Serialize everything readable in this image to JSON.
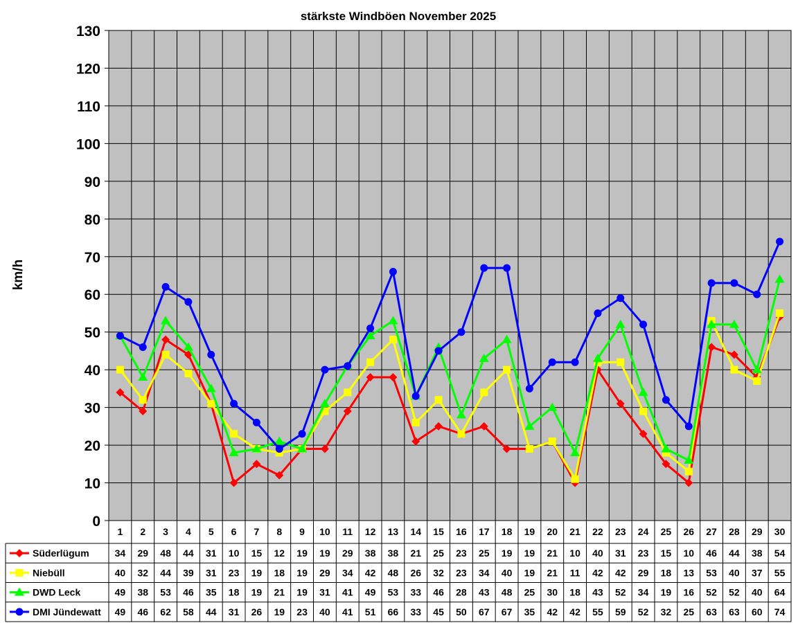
{
  "chart_data": {
    "type": "line",
    "title": "stärkste Windböen November 2025",
    "xlabel": "",
    "ylabel": "km/h",
    "ylim": [
      0,
      130
    ],
    "yticks": [
      0,
      10,
      20,
      30,
      40,
      50,
      60,
      70,
      80,
      90,
      100,
      110,
      120,
      130
    ],
    "grid": true,
    "legend_position": "bottom data table",
    "categories": [
      "1",
      "2",
      "3",
      "4",
      "5",
      "6",
      "7",
      "8",
      "9",
      "10",
      "11",
      "12",
      "13",
      "14",
      "15",
      "16",
      "17",
      "18",
      "19",
      "20",
      "21",
      "22",
      "23",
      "24",
      "25",
      "26",
      "27",
      "28",
      "29",
      "30"
    ],
    "series": [
      {
        "name": "Süderlügum",
        "color": "#ff0000",
        "marker": "diamond",
        "values": [
          34,
          29,
          48,
          44,
          31,
          10,
          15,
          12,
          19,
          19,
          29,
          38,
          38,
          21,
          25,
          23,
          25,
          19,
          19,
          21,
          10,
          40,
          31,
          23,
          15,
          10,
          46,
          44,
          38,
          54
        ]
      },
      {
        "name": "Niebüll",
        "color": "#ffff00",
        "marker": "square",
        "values": [
          40,
          32,
          44,
          39,
          31,
          23,
          19,
          18,
          19,
          29,
          34,
          42,
          48,
          26,
          32,
          23,
          34,
          40,
          19,
          21,
          11,
          42,
          42,
          29,
          18,
          13,
          53,
          40,
          37,
          55
        ]
      },
      {
        "name": "DWD Leck",
        "color": "#00ff00",
        "marker": "triangle",
        "values": [
          49,
          38,
          53,
          46,
          35,
          18,
          19,
          21,
          19,
          31,
          41,
          49,
          53,
          33,
          46,
          28,
          43,
          48,
          25,
          30,
          18,
          43,
          52,
          34,
          19,
          16,
          52,
          52,
          40,
          64
        ]
      },
      {
        "name": "DMI Jündewatt",
        "color": "#0000ff",
        "marker": "circle",
        "values": [
          49,
          46,
          62,
          58,
          44,
          31,
          26,
          19,
          23,
          40,
          41,
          51,
          66,
          33,
          45,
          50,
          67,
          67,
          35,
          42,
          42,
          55,
          59,
          52,
          32,
          25,
          63,
          63,
          60,
          74
        ]
      }
    ]
  }
}
